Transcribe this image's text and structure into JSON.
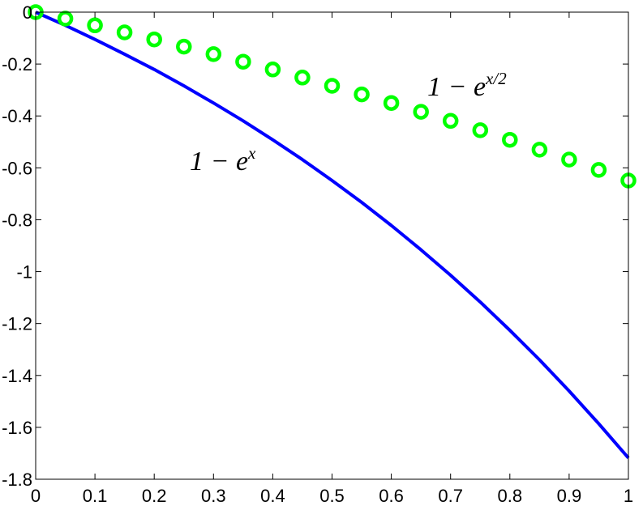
{
  "chart_data": {
    "type": "line",
    "xlim": [
      0,
      1
    ],
    "ylim": [
      -1.8,
      0
    ],
    "xticks": [
      "0",
      "0.1",
      "0.2",
      "0.3",
      "0.4",
      "0.5",
      "0.6",
      "0.7",
      "0.8",
      "0.9",
      "1"
    ],
    "yticks": [
      "0",
      "-0.2",
      "-0.4",
      "-0.6",
      "-0.8",
      "-1",
      "-1.2",
      "-1.4",
      "-1.6",
      "-1.8"
    ],
    "grid": false,
    "series": [
      {
        "style": "line",
        "color": "#0000ff",
        "x": [
          0,
          0.05,
          0.1,
          0.15,
          0.2,
          0.25,
          0.3,
          0.35,
          0.4,
          0.45,
          0.5,
          0.55,
          0.6,
          0.65,
          0.7,
          0.75,
          0.8,
          0.85,
          0.9,
          0.95,
          1.0
        ],
        "values": [
          0,
          -0.051,
          -0.105,
          -0.162,
          -0.221,
          -0.284,
          -0.35,
          -0.419,
          -0.492,
          -0.568,
          -0.649,
          -0.733,
          -0.822,
          -0.916,
          -1.014,
          -1.117,
          -1.226,
          -1.34,
          -1.46,
          -1.586,
          -1.718
        ]
      },
      {
        "style": "markers",
        "marker": "circle",
        "color": "#00ff00",
        "x": [
          0,
          0.05,
          0.1,
          0.15,
          0.2,
          0.25,
          0.3,
          0.35,
          0.4,
          0.45,
          0.5,
          0.55,
          0.6,
          0.65,
          0.7,
          0.75,
          0.8,
          0.85,
          0.9,
          0.95,
          1.0
        ],
        "values": [
          0,
          -0.025,
          -0.051,
          -0.078,
          -0.105,
          -0.133,
          -0.162,
          -0.191,
          -0.221,
          -0.252,
          -0.284,
          -0.317,
          -0.35,
          -0.384,
          -0.419,
          -0.455,
          -0.492,
          -0.53,
          -0.568,
          -0.608,
          -0.649
        ]
      }
    ],
    "annotations": [
      {
        "base": "1 − e",
        "sup": "x"
      },
      {
        "base": "1 − e",
        "sup": "x/2"
      }
    ]
  }
}
